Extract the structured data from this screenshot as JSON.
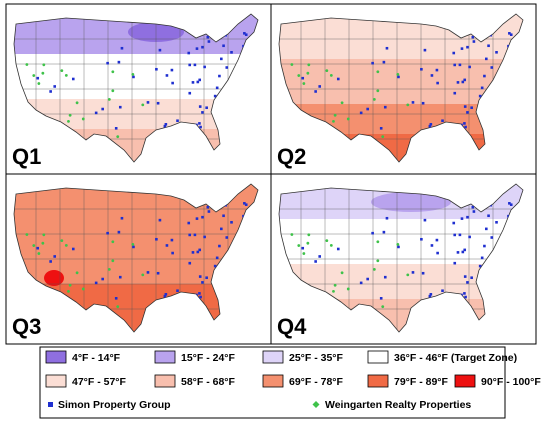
{
  "panels": [
    {
      "label": "Q1"
    },
    {
      "label": "Q2"
    },
    {
      "label": "Q3"
    },
    {
      "label": "Q4"
    }
  ],
  "legend": {
    "ranges": [
      {
        "label": "4°F - 14°F",
        "color": "#8f6fe0"
      },
      {
        "label": "15°F - 24°F",
        "color": "#b9a3ee"
      },
      {
        "label": "25°F - 35°F",
        "color": "#ded4f8"
      },
      {
        "label": "36°F - 46°F (Target Zone)",
        "color": "#ffffff"
      },
      {
        "label": "47°F - 57°F",
        "color": "#fbded5"
      },
      {
        "label": "58°F - 68°F",
        "color": "#f8bfae"
      },
      {
        "label": "69°F - 78°F",
        "color": "#f4906f"
      },
      {
        "label": "79°F - 89°F",
        "color": "#f06a45"
      },
      {
        "label": "90°F - 100°F",
        "color": "#ee1111"
      }
    ],
    "markers": [
      {
        "label": "Simon Property Group",
        "color": "#1f2fd0"
      },
      {
        "label": "Weingarten Realty Properties",
        "color": "#3fc24a"
      }
    ]
  }
}
